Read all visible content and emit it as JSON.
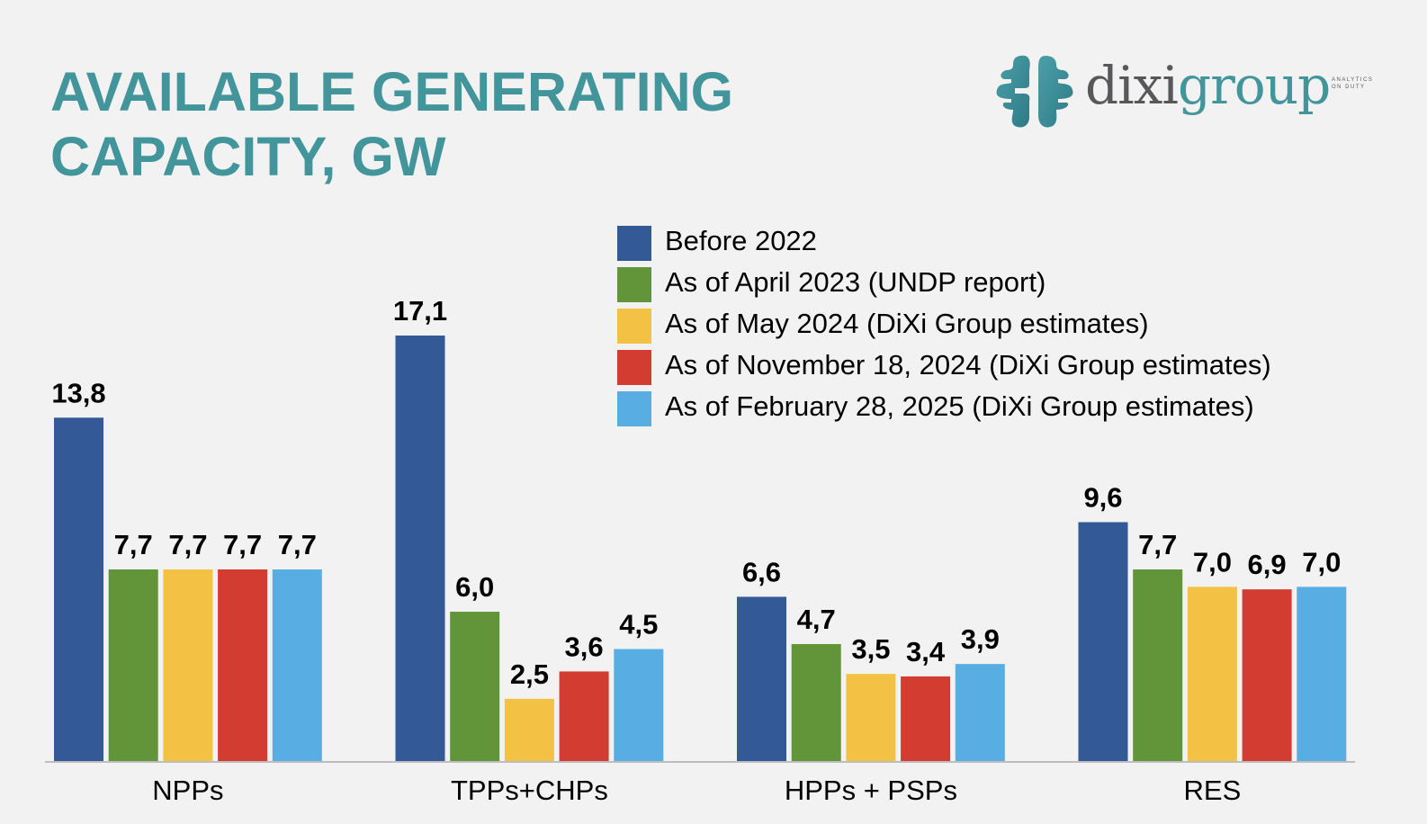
{
  "title_line1": "AVAILABLE GENERATING",
  "title_line2": "CAPACITY, GW",
  "logo": {
    "part1": "dixi",
    "part2": "group",
    "tagline_line1": "ANALYTICS",
    "tagline_line2": "ON DUTY",
    "color_primary": "#42959a",
    "color_secondary": "#58585a"
  },
  "chart_data": {
    "type": "bar",
    "title": "AVAILABLE GENERATING CAPACITY, GW",
    "xlabel": "",
    "ylabel": "",
    "ylim": [
      0,
      17.1
    ],
    "grid": false,
    "legend_position": "top-right",
    "categories": [
      "NPPs",
      "TPPs+CHPs",
      "HPPs + PSPs",
      "RES"
    ],
    "series": [
      {
        "name": "Before 2022",
        "color": "#335a96",
        "values": [
          13.8,
          17.1,
          6.6,
          9.6
        ],
        "labels": [
          "13,8",
          "17,1",
          "6,6",
          "9,6"
        ]
      },
      {
        "name": "As of April 2023 (UNDP report)",
        "color": "#62943a",
        "values": [
          7.7,
          6.0,
          4.7,
          7.7
        ],
        "labels": [
          "7,7",
          "6,0",
          "4,7",
          "7,7"
        ]
      },
      {
        "name": "As of May 2024 (DiXi Group estimates)",
        "color": "#f3c244",
        "values": [
          7.7,
          2.5,
          3.5,
          7.0
        ],
        "labels": [
          "7,7",
          "2,5",
          "3,5",
          "7,0"
        ]
      },
      {
        "name": "As of November 18, 2024 (DiXi Group estimates)",
        "color": "#d33c30",
        "values": [
          7.7,
          3.6,
          3.4,
          6.9
        ],
        "labels": [
          "7,7",
          "3,6",
          "3,4",
          "6,9"
        ]
      },
      {
        "name": "As of February 28, 2025 (DiXi Group estimates)",
        "color": "#58ade2",
        "values": [
          7.7,
          4.5,
          3.9,
          7.0
        ],
        "labels": [
          "7,7",
          "4,5",
          "3,9",
          "7,0"
        ]
      }
    ]
  }
}
